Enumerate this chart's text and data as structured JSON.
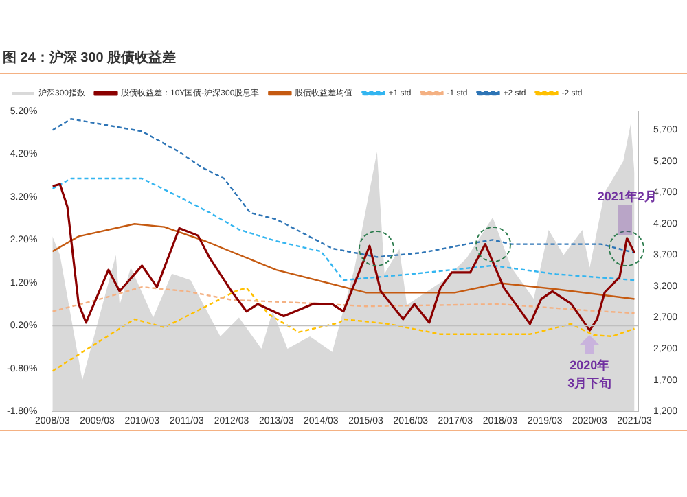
{
  "chart_data": {
    "type": "line",
    "title": "图 24：沪深 300 股债收益差",
    "legend": "top",
    "xlim": [
      "2008-03",
      "2021-04"
    ],
    "xticks": [
      {
        "value": "2008-03",
        "label": "2008/03"
      },
      {
        "value": "2009-03",
        "label": "2009/03"
      },
      {
        "value": "2010-03",
        "label": "2010/03"
      },
      {
        "value": "2011-03",
        "label": "2011/03"
      },
      {
        "value": "2012-03",
        "label": "2012/03"
      },
      {
        "value": "2013-03",
        "label": "2013/03"
      },
      {
        "value": "2014-03",
        "label": "2014/03"
      },
      {
        "value": "2015-03",
        "label": "2015/03"
      },
      {
        "value": "2016-03",
        "label": "2016/03"
      },
      {
        "value": "2017-03",
        "label": "2017/03"
      },
      {
        "value": "2018-03",
        "label": "2018/03"
      },
      {
        "value": "2019-03",
        "label": "2019/03"
      },
      {
        "value": "2020-03",
        "label": "2020/03"
      },
      {
        "value": "2021-03",
        "label": "2021/03"
      }
    ],
    "ylim": [
      -1.8,
      5.2
    ],
    "yticks": [
      {
        "value": -1.8,
        "label": "-1.80%"
      },
      {
        "value": -0.8,
        "label": "-0.80%"
      },
      {
        "value": 0.2,
        "label": "0.20%"
      },
      {
        "value": 1.2,
        "label": "1.20%"
      },
      {
        "value": 2.2,
        "label": "2.20%"
      },
      {
        "value": 3.2,
        "label": "3.20%"
      },
      {
        "value": 4.2,
        "label": "4.20%"
      },
      {
        "value": 5.2,
        "label": "5.20%"
      }
    ],
    "y2lim": [
      1200,
      6000
    ],
    "y2ticks": [
      {
        "value": 1200,
        "label": "1,200"
      },
      {
        "value": 1700,
        "label": "1,700"
      },
      {
        "value": 2200,
        "label": "2,200"
      },
      {
        "value": 2700,
        "label": "2,700"
      },
      {
        "value": 3200,
        "label": "3,200"
      },
      {
        "value": 3700,
        "label": "3,700"
      },
      {
        "value": 4200,
        "label": "4,200"
      },
      {
        "value": 4700,
        "label": "4,700"
      },
      {
        "value": 5200,
        "label": "5,200"
      },
      {
        "value": 5700,
        "label": "5,700"
      }
    ],
    "ref_lines": [
      {
        "axis": "y",
        "value": 0.2,
        "color": "#bfbfbf"
      }
    ],
    "annotations": [
      {
        "text": "2021年2月",
        "x": "2021-01",
        "y": 2.24
      },
      {
        "text": "2020年\n3月下旬",
        "x": "2020-03",
        "y": 0.09
      }
    ],
    "series": [
      {
        "name": "沪深300指数",
        "type": "area",
        "axis": "y2",
        "color": "#d9d9d9",
        "x": [
          "2008-03",
          "2008-05",
          "2008-11",
          "2009-08",
          "2009-09",
          "2009-12",
          "2010-06",
          "2010-11",
          "2011-04",
          "2011-12",
          "2012-05",
          "2012-11",
          "2013-02",
          "2013-06",
          "2013-12",
          "2014-06",
          "2014-12",
          "2015-06",
          "2015-08",
          "2015-12",
          "2016-02",
          "2016-12",
          "2017-06",
          "2018-01",
          "2018-06",
          "2018-12",
          "2019-04",
          "2019-08",
          "2020-01",
          "2020-03",
          "2020-07",
          "2020-12",
          "2021-02",
          "2021-03"
        ],
        "values": [
          4000,
          3700,
          1700,
          3700,
          2900,
          3500,
          2700,
          3400,
          3300,
          2400,
          2700,
          2200,
          2800,
          2200,
          2400,
          2150,
          3500,
          5350,
          3400,
          3800,
          2900,
          3300,
          3650,
          4300,
          3500,
          3000,
          4100,
          3700,
          4100,
          3500,
          4700,
          5200,
          5800,
          5000
        ]
      },
      {
        "name": "股债收益差：10Y国债-沪深300股息率",
        "color": "#8b0000",
        "x": [
          "2008-03",
          "2008-05",
          "2008-07",
          "2008-10",
          "2008-12",
          "2009-06",
          "2009-09",
          "2010-03",
          "2010-07",
          "2011-01",
          "2011-06",
          "2011-09",
          "2012-03",
          "2012-07",
          "2012-10",
          "2013-05",
          "2014-01",
          "2014-06",
          "2014-09",
          "2015-04",
          "2015-07",
          "2016-01",
          "2016-04",
          "2016-08",
          "2016-11",
          "2017-02",
          "2017-07",
          "2017-11",
          "2018-04",
          "2018-11",
          "2019-02",
          "2019-05",
          "2019-10",
          "2020-03",
          "2020-05",
          "2020-07",
          "2020-11",
          "2021-01",
          "2021-03"
        ],
        "values": [
          3.45,
          3.5,
          2.97,
          0.71,
          0.27,
          1.5,
          1.0,
          1.6,
          1.1,
          2.47,
          2.3,
          1.8,
          1.0,
          0.53,
          0.7,
          0.42,
          0.71,
          0.7,
          0.53,
          2.06,
          1.0,
          0.35,
          0.7,
          0.27,
          1.08,
          1.44,
          1.44,
          2.1,
          1.08,
          0.24,
          0.82,
          1.0,
          0.71,
          0.09,
          0.35,
          0.97,
          1.33,
          2.24,
          1.9
        ]
      },
      {
        "name": "股债收益差均值",
        "color": "#c55a11",
        "x": [
          "2008-03",
          "2008-10",
          "2010-01",
          "2010-09",
          "2011-08",
          "2013-03",
          "2015-03",
          "2017-03",
          "2018-03",
          "2019-06",
          "2021-03"
        ],
        "values": [
          1.93,
          2.28,
          2.57,
          2.5,
          2.17,
          1.5,
          0.97,
          0.97,
          1.19,
          1.05,
          0.82
        ]
      },
      {
        "name": "+1 std",
        "color": "#33b5f0",
        "line_style": "dashed",
        "x": [
          "2008-03",
          "2008-08",
          "2010-03",
          "2011-01",
          "2011-09",
          "2012-05",
          "2013-03",
          "2014-03",
          "2014-09",
          "2016-03",
          "2018-01",
          "2019-06",
          "2021-03"
        ],
        "values": [
          3.39,
          3.63,
          3.63,
          3.2,
          2.84,
          2.44,
          2.17,
          1.93,
          1.26,
          1.4,
          1.6,
          1.4,
          1.26
        ]
      },
      {
        "name": "-1 std",
        "color": "#f4b183",
        "line_style": "dashed",
        "x": [
          "2008-03",
          "2009-03",
          "2010-03",
          "2011-03",
          "2012-03",
          "2014-03",
          "2015-03",
          "2018-03",
          "2020-03",
          "2021-03"
        ],
        "values": [
          0.53,
          0.8,
          1.1,
          1.0,
          0.8,
          0.71,
          0.65,
          0.7,
          0.55,
          0.49
        ]
      },
      {
        "name": "+2 std",
        "color": "#2e75b6",
        "line_style": "dashed",
        "x": [
          "2008-03",
          "2008-08",
          "2009-04",
          "2010-03",
          "2011-01",
          "2011-07",
          "2012-01",
          "2012-08",
          "2013-03",
          "2014-06",
          "2015-06",
          "2016-06",
          "2017-06",
          "2018-01",
          "2018-06",
          "2019-06",
          "2020-06",
          "2021-03"
        ],
        "values": [
          4.76,
          5.02,
          4.9,
          4.73,
          4.25,
          3.89,
          3.63,
          2.83,
          2.68,
          2.0,
          1.8,
          1.9,
          2.1,
          2.2,
          2.1,
          2.1,
          2.1,
          1.9
        ]
      },
      {
        "name": "-2 std",
        "color": "#ffc000",
        "line_style": "dashed",
        "x": [
          "2008-03",
          "2009-01",
          "2010-01",
          "2010-09",
          "2011-08",
          "2012-04",
          "2012-07",
          "2013-01",
          "2013-09",
          "2014-08",
          "2014-09",
          "2015-09",
          "2016-11",
          "2018-01",
          "2018-11",
          "2019-10",
          "2020-04",
          "2020-09",
          "2021-03"
        ],
        "values": [
          -0.86,
          -0.31,
          0.35,
          0.16,
          0.64,
          1.0,
          1.08,
          0.46,
          0.05,
          0.27,
          0.35,
          0.24,
          0.0,
          0.0,
          0.0,
          0.24,
          -0.02,
          -0.05,
          0.13
        ]
      }
    ]
  }
}
